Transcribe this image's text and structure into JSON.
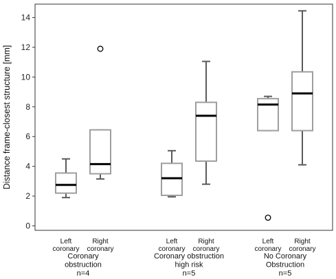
{
  "chart_data": {
    "type": "box",
    "ylabel": "Distance frame-closest structure [mm]",
    "ylim": [
      -0.3,
      14.9
    ],
    "yticks": [
      "0",
      "2",
      "4",
      "6",
      "8",
      "10",
      "12",
      "14"
    ],
    "grid": false,
    "groups": [
      {
        "label_lines": [
          "Coronary",
          "obstruction",
          "n=4"
        ],
        "boxes": [
          {
            "label_lines": [
              "Left",
              "coronary"
            ],
            "whisker_low": 1.9,
            "q1": 2.2,
            "median": 2.75,
            "q3": 3.55,
            "whisker_high": 4.5,
            "outliers": []
          },
          {
            "label_lines": [
              "Right",
              "coronary"
            ],
            "whisker_low": 3.15,
            "q1": 3.5,
            "median": 4.15,
            "q3": 6.45,
            "whisker_high": 6.45,
            "outliers": [
              11.9
            ]
          }
        ]
      },
      {
        "label_lines": [
          "Coronary obstruction",
          "high risk",
          "n=5"
        ],
        "boxes": [
          {
            "label_lines": [
              "Left",
              "coronary"
            ],
            "whisker_low": 1.95,
            "q1": 2.05,
            "median": 3.2,
            "q3": 4.2,
            "whisker_high": 5.05,
            "outliers": []
          },
          {
            "label_lines": [
              "Right",
              "coronary"
            ],
            "whisker_low": 2.8,
            "q1": 4.35,
            "median": 7.4,
            "q3": 8.3,
            "whisker_high": 11.05,
            "outliers": []
          }
        ]
      },
      {
        "label_lines": [
          "No Coronary",
          "Obstruction",
          "n=5"
        ],
        "boxes": [
          {
            "label_lines": [
              "Left",
              "coronary"
            ],
            "whisker_low": 6.4,
            "q1": 6.4,
            "median": 8.15,
            "q3": 8.55,
            "whisker_high": 8.7,
            "outliers": [
              0.55
            ]
          },
          {
            "label_lines": [
              "Right",
              "coronary"
            ],
            "whisker_low": 4.1,
            "q1": 6.4,
            "median": 8.9,
            "q3": 10.35,
            "whisker_high": 14.45,
            "outliers": []
          }
        ]
      }
    ],
    "colors": {
      "box_edge": "#9e9e9e",
      "whisker": "#5a5a5a",
      "median": "#000000",
      "axis": "#333333"
    }
  }
}
